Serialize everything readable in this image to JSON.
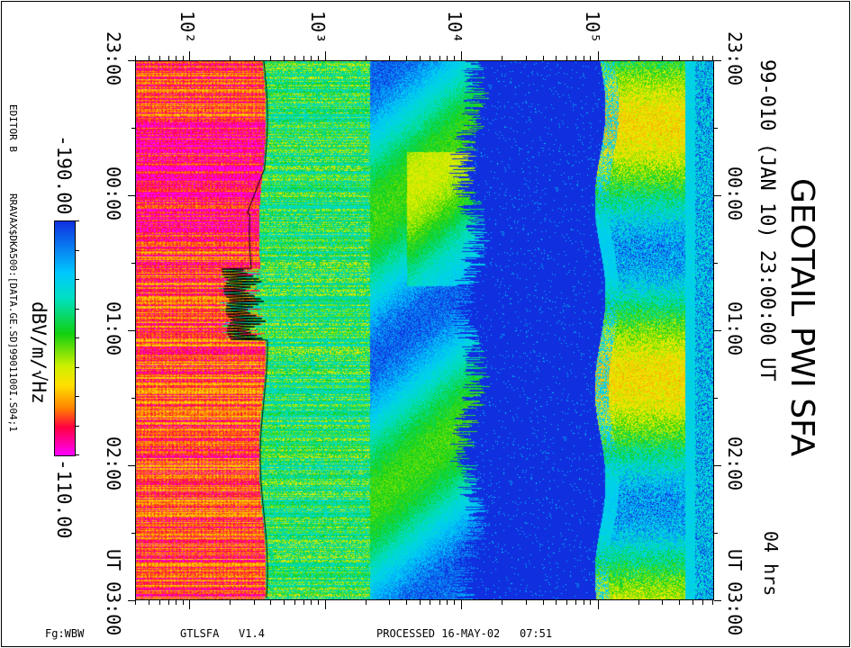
{
  "title": "GEOTAIL PWI SFA",
  "subtitle": "99-010 (JAN 10) 23:00:00 UT",
  "duration": "04 hrs",
  "editor": "EDITOR B",
  "source_file": "RRAVAX$DKA500:[DATA.GE.SD]9901100I.S04;1",
  "footer": {
    "left": "Fg:WBW",
    "program": "GTLSFA   V1.4",
    "processed": "PROCESSED 16-MAY-02   07:51"
  },
  "colorbar": {
    "min_label": "-190.00",
    "max_label": "-110.00",
    "unit": "dBV/m/√Hz",
    "colors": [
      "#1030e0",
      "#00c8ff",
      "#10d010",
      "#ffe000",
      "#ff8000",
      "#ff0040",
      "#ff00ff"
    ]
  },
  "chart_data": {
    "type": "heatmap",
    "title": "GEOTAIL PWI SFA",
    "x_axis": {
      "scale": "log",
      "ticks": [
        "10²",
        "10³",
        "10⁴",
        "10⁵"
      ],
      "tick_values": [
        100,
        1000,
        10000,
        100000
      ]
    },
    "y_axis": {
      "ticks": [
        "23:00",
        "00:00",
        "01:00",
        "02:00",
        "UT 03:00"
      ],
      "range": [
        "23:00",
        "03:00"
      ]
    },
    "color_range": [
      -190,
      -110
    ]
  }
}
